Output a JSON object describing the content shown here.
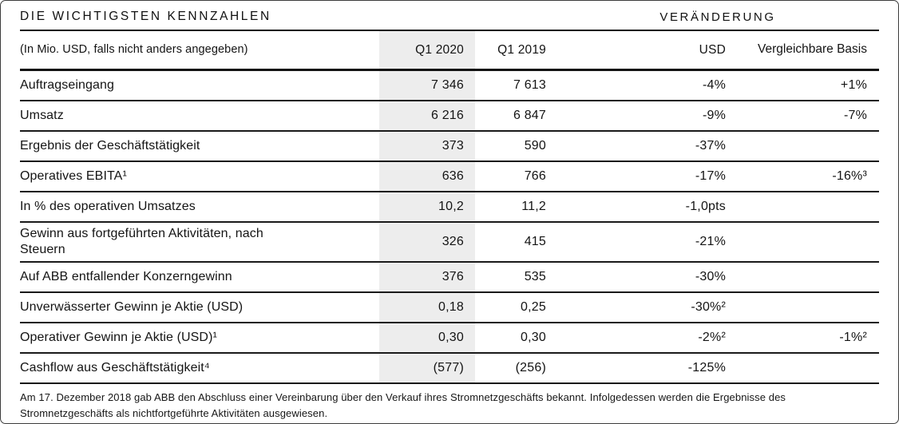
{
  "colors": {
    "highlight_column_bg": "#ededed",
    "rule_color": "#111111",
    "text_color": "#141414",
    "frame_border": "#3c3c3c"
  },
  "table": {
    "title": "DIE WICHTIGSTEN KENNZAHLEN",
    "change_group_header": "VERÄNDERUNG",
    "columns": {
      "label": "(In Mio. USD, falls nicht anders angegeben)",
      "q1_2020": "Q1 2020",
      "q1_2019": "Q1 2019",
      "usd": "USD",
      "comparable": "Vergleichbare Basis"
    },
    "rows": [
      {
        "label": "Auftragseingang",
        "q1_2020": "7 346",
        "q1_2019": "7 613",
        "usd": "-4%",
        "comparable": "+1%"
      },
      {
        "label": "Umsatz",
        "q1_2020": "6 216",
        "q1_2019": "6 847",
        "usd": "-9%",
        "comparable": "-7%"
      },
      {
        "label": "Ergebnis der Geschäftstätigkeit",
        "q1_2020": "373",
        "q1_2019": "590",
        "usd": "-37%",
        "comparable": ""
      },
      {
        "label": "Operatives EBITA¹",
        "q1_2020": "636",
        "q1_2019": "766",
        "usd": "-17%",
        "comparable": "-16%³"
      },
      {
        "label": "In % des operativen Umsatzes",
        "q1_2020": "10,2",
        "q1_2019": "11,2",
        "usd": "-1,0pts",
        "comparable": ""
      },
      {
        "label": "Gewinn aus fortgeführten Aktivitäten, nach\nSteuern",
        "q1_2020": "326",
        "q1_2019": "415",
        "usd": "-21%",
        "comparable": ""
      },
      {
        "label": "Auf ABB entfallender Konzerngewinn",
        "q1_2020": "376",
        "q1_2019": "535",
        "usd": "-30%",
        "comparable": ""
      },
      {
        "label": "Unverwässerter Gewinn je Aktie (USD)",
        "q1_2020": "0,18",
        "q1_2019": "0,25",
        "usd": "-30%²",
        "comparable": ""
      },
      {
        "label": "Operativer Gewinn je Aktie (USD)¹",
        "q1_2020": "0,30",
        "q1_2019": "0,30",
        "usd": "-2%²",
        "comparable": "-1%²"
      },
      {
        "label": "Cashflow aus Geschäftstätigkeit⁴",
        "q1_2020": "(577)",
        "q1_2019": "(256)",
        "usd": "-125%",
        "comparable": ""
      }
    ],
    "footnote": "Am 17. Dezember 2018 gab ABB den Abschluss einer Vereinbarung über den Verkauf ihres Stromnetzgeschäfts bekannt. Infolgedessen werden die Ergebnisse des\nStromnetzgeschäfts als nichtfortgeführte Aktivitäten ausgewiesen."
  }
}
